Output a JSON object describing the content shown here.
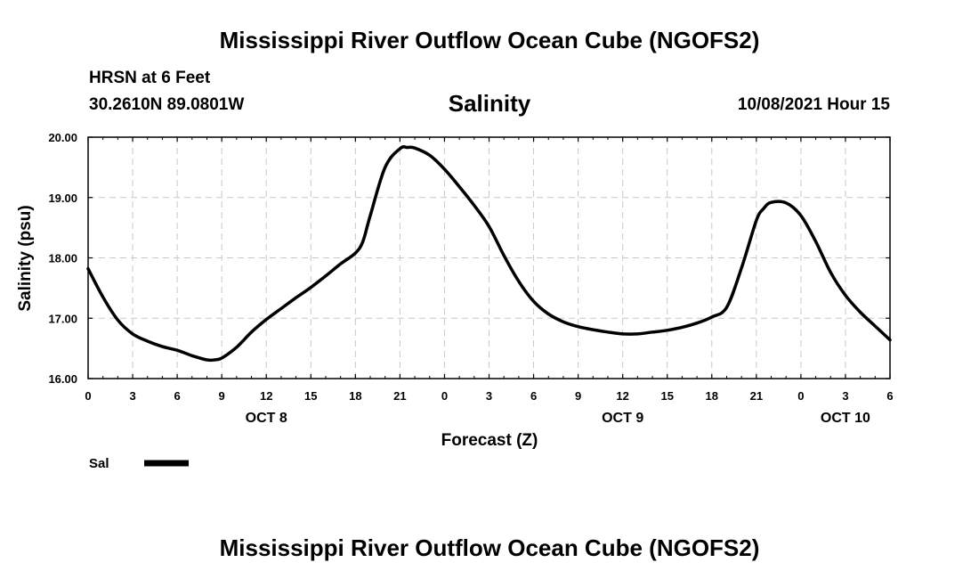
{
  "header": {
    "title": "Mississippi River Outflow Ocean Cube (NGOFS2)",
    "station": "HRSN at 6 Feet",
    "coords": "30.2610N  89.0801W",
    "variable": "Salinity",
    "timestamp": "10/08/2021 Hour 15"
  },
  "footer": {
    "title": "Mississippi River Outflow Ocean Cube (NGOFS2)"
  },
  "chart_data": {
    "type": "line",
    "title": "Salinity",
    "xlabel": "Forecast (Z)",
    "ylabel": "Salinity (psu)",
    "xlim": [
      0,
      54
    ],
    "ylim": [
      16,
      20
    ],
    "grid": true,
    "x_ticks": [
      0,
      3,
      6,
      9,
      12,
      15,
      18,
      21,
      24,
      27,
      30,
      33,
      36,
      39,
      42,
      45,
      48,
      51,
      54
    ],
    "x_tick_labels": [
      "0",
      "3",
      "6",
      "9",
      "12",
      "15",
      "18",
      "21",
      "0",
      "3",
      "6",
      "9",
      "12",
      "15",
      "18",
      "21",
      "0",
      "3",
      "6"
    ],
    "y_ticks": [
      16,
      17,
      18,
      19,
      20
    ],
    "y_tick_labels": [
      "16.00",
      "17.00",
      "18.00",
      "19.00",
      "20.00"
    ],
    "day_labels": [
      {
        "x": 12,
        "label": "OCT 8"
      },
      {
        "x": 36,
        "label": "OCT 9"
      },
      {
        "x": 51,
        "label": "OCT 10"
      }
    ],
    "legend": {
      "position": "bottom-left",
      "entries": [
        "Sal"
      ]
    },
    "series": [
      {
        "name": "Sal",
        "x": [
          0,
          1,
          2,
          3,
          4,
          5,
          6,
          7,
          8,
          8.5,
          9,
          10,
          11,
          12,
          13,
          14,
          15,
          16,
          17,
          18,
          18.5,
          19,
          20,
          21,
          21.5,
          22,
          23,
          24,
          25,
          26,
          27,
          28,
          29,
          30,
          31,
          32,
          33,
          34,
          35,
          36,
          37,
          38,
          39,
          40,
          41,
          42,
          43,
          44,
          45,
          45.5,
          46,
          47,
          48,
          49,
          50,
          51,
          52,
          53,
          54
        ],
        "values": [
          17.82,
          17.35,
          16.97,
          16.74,
          16.62,
          16.53,
          16.47,
          16.38,
          16.31,
          16.31,
          16.34,
          16.52,
          16.77,
          16.98,
          17.16,
          17.34,
          17.51,
          17.7,
          17.9,
          18.08,
          18.27,
          18.7,
          19.5,
          19.81,
          19.83,
          19.82,
          19.7,
          19.47,
          19.18,
          18.87,
          18.52,
          18.04,
          17.61,
          17.28,
          17.07,
          16.94,
          16.86,
          16.81,
          16.77,
          16.74,
          16.74,
          16.77,
          16.8,
          16.85,
          16.92,
          17.02,
          17.18,
          17.83,
          18.62,
          18.82,
          18.92,
          18.91,
          18.7,
          18.27,
          17.76,
          17.38,
          17.1,
          16.87,
          16.64
        ]
      }
    ]
  }
}
